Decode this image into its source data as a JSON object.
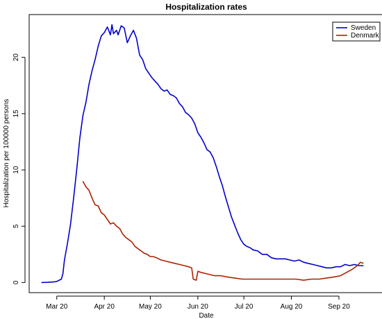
{
  "chart_data": {
    "type": "line",
    "title": "Hospitalization rates",
    "xlabel": "Date",
    "ylabel": "Hospitalization per 100000 persons",
    "x_range": [
      "2020-02-12",
      "2020-09-30"
    ],
    "ylim": [
      -0.9,
      23.8
    ],
    "x_ticks": [
      {
        "date": "2020-03-01",
        "label": "Mar 20"
      },
      {
        "date": "2020-04-01",
        "label": "Apr 20"
      },
      {
        "date": "2020-05-01",
        "label": "May 20"
      },
      {
        "date": "2020-06-01",
        "label": "Jun 20"
      },
      {
        "date": "2020-07-01",
        "label": "Jul 20"
      },
      {
        "date": "2020-08-01",
        "label": "Aug 20"
      },
      {
        "date": "2020-09-01",
        "label": "Sep 20"
      }
    ],
    "y_ticks": [
      0,
      5,
      10,
      15,
      20
    ],
    "grid": false,
    "legend_position": "top-right",
    "series": [
      {
        "name": "Sweden",
        "color": "#0000cc",
        "points": [
          [
            "2020-02-20",
            0.0
          ],
          [
            "2020-02-24",
            0.02
          ],
          [
            "2020-02-28",
            0.05
          ],
          [
            "2020-03-01",
            0.1
          ],
          [
            "2020-03-04",
            0.3
          ],
          [
            "2020-03-05",
            0.8
          ],
          [
            "2020-03-06",
            2.0
          ],
          [
            "2020-03-08",
            3.5
          ],
          [
            "2020-03-10",
            5.2
          ],
          [
            "2020-03-12",
            7.5
          ],
          [
            "2020-03-14",
            10.0
          ],
          [
            "2020-03-16",
            12.8
          ],
          [
            "2020-03-18",
            14.8
          ],
          [
            "2020-03-20",
            16.0
          ],
          [
            "2020-03-22",
            17.6
          ],
          [
            "2020-03-24",
            18.8
          ],
          [
            "2020-03-26",
            19.8
          ],
          [
            "2020-03-28",
            21.0
          ],
          [
            "2020-03-30",
            21.9
          ],
          [
            "2020-04-01",
            22.2
          ],
          [
            "2020-04-03",
            22.7
          ],
          [
            "2020-04-05",
            22.0
          ],
          [
            "2020-04-06",
            22.9
          ],
          [
            "2020-04-07",
            22.1
          ],
          [
            "2020-04-09",
            22.4
          ],
          [
            "2020-04-10",
            22.0
          ],
          [
            "2020-04-12",
            22.8
          ],
          [
            "2020-04-14",
            22.6
          ],
          [
            "2020-04-16",
            21.3
          ],
          [
            "2020-04-18",
            21.9
          ],
          [
            "2020-04-20",
            22.4
          ],
          [
            "2020-04-22",
            21.7
          ],
          [
            "2020-04-24",
            20.2
          ],
          [
            "2020-04-26",
            19.8
          ],
          [
            "2020-04-28",
            19.0
          ],
          [
            "2020-04-30",
            18.6
          ],
          [
            "2020-05-02",
            18.2
          ],
          [
            "2020-05-04",
            17.9
          ],
          [
            "2020-05-06",
            17.6
          ],
          [
            "2020-05-08",
            17.2
          ],
          [
            "2020-05-10",
            17.0
          ],
          [
            "2020-05-12",
            17.1
          ],
          [
            "2020-05-14",
            16.7
          ],
          [
            "2020-05-16",
            16.6
          ],
          [
            "2020-05-18",
            16.4
          ],
          [
            "2020-05-20",
            15.9
          ],
          [
            "2020-05-22",
            15.6
          ],
          [
            "2020-05-24",
            15.1
          ],
          [
            "2020-05-26",
            14.9
          ],
          [
            "2020-05-28",
            14.6
          ],
          [
            "2020-05-30",
            14.1
          ],
          [
            "2020-06-01",
            13.3
          ],
          [
            "2020-06-03",
            12.9
          ],
          [
            "2020-06-05",
            12.4
          ],
          [
            "2020-06-07",
            11.8
          ],
          [
            "2020-06-09",
            11.6
          ],
          [
            "2020-06-11",
            11.1
          ],
          [
            "2020-06-13",
            10.3
          ],
          [
            "2020-06-15",
            9.4
          ],
          [
            "2020-06-17",
            8.6
          ],
          [
            "2020-06-19",
            7.6
          ],
          [
            "2020-06-21",
            6.7
          ],
          [
            "2020-06-23",
            5.8
          ],
          [
            "2020-06-25",
            5.1
          ],
          [
            "2020-06-27",
            4.4
          ],
          [
            "2020-06-29",
            3.8
          ],
          [
            "2020-07-01",
            3.4
          ],
          [
            "2020-07-03",
            3.2
          ],
          [
            "2020-07-05",
            3.1
          ],
          [
            "2020-07-07",
            2.9
          ],
          [
            "2020-07-10",
            2.8
          ],
          [
            "2020-07-13",
            2.5
          ],
          [
            "2020-07-16",
            2.5
          ],
          [
            "2020-07-19",
            2.2
          ],
          [
            "2020-07-22",
            2.1
          ],
          [
            "2020-07-25",
            2.1
          ],
          [
            "2020-07-28",
            2.1
          ],
          [
            "2020-07-31",
            2.0
          ],
          [
            "2020-08-03",
            1.9
          ],
          [
            "2020-08-06",
            2.0
          ],
          [
            "2020-08-09",
            1.8
          ],
          [
            "2020-08-12",
            1.7
          ],
          [
            "2020-08-15",
            1.6
          ],
          [
            "2020-08-18",
            1.5
          ],
          [
            "2020-08-21",
            1.4
          ],
          [
            "2020-08-24",
            1.3
          ],
          [
            "2020-08-27",
            1.3
          ],
          [
            "2020-08-30",
            1.4
          ],
          [
            "2020-09-02",
            1.4
          ],
          [
            "2020-09-05",
            1.6
          ],
          [
            "2020-09-08",
            1.5
          ],
          [
            "2020-09-11",
            1.6
          ],
          [
            "2020-09-14",
            1.5
          ],
          [
            "2020-09-17",
            1.5
          ]
        ]
      },
      {
        "name": "Denmark",
        "color": "#aa2200",
        "points": [
          [
            "2020-03-18",
            9.0
          ],
          [
            "2020-03-20",
            8.5
          ],
          [
            "2020-03-22",
            8.2
          ],
          [
            "2020-03-24",
            7.5
          ],
          [
            "2020-03-26",
            6.9
          ],
          [
            "2020-03-28",
            6.8
          ],
          [
            "2020-03-30",
            6.2
          ],
          [
            "2020-04-01",
            6.0
          ],
          [
            "2020-04-03",
            5.6
          ],
          [
            "2020-04-05",
            5.2
          ],
          [
            "2020-04-07",
            5.3
          ],
          [
            "2020-04-09",
            5.0
          ],
          [
            "2020-04-11",
            4.8
          ],
          [
            "2020-04-13",
            4.3
          ],
          [
            "2020-04-15",
            4.0
          ],
          [
            "2020-04-17",
            3.8
          ],
          [
            "2020-04-19",
            3.6
          ],
          [
            "2020-04-21",
            3.2
          ],
          [
            "2020-04-23",
            3.0
          ],
          [
            "2020-04-25",
            2.8
          ],
          [
            "2020-04-27",
            2.6
          ],
          [
            "2020-04-29",
            2.5
          ],
          [
            "2020-05-01",
            2.3
          ],
          [
            "2020-05-03",
            2.3
          ],
          [
            "2020-05-05",
            2.2
          ],
          [
            "2020-05-08",
            2.0
          ],
          [
            "2020-05-11",
            1.9
          ],
          [
            "2020-05-14",
            1.8
          ],
          [
            "2020-05-17",
            1.7
          ],
          [
            "2020-05-20",
            1.6
          ],
          [
            "2020-05-23",
            1.5
          ],
          [
            "2020-05-26",
            1.4
          ],
          [
            "2020-05-28",
            1.3
          ],
          [
            "2020-05-29",
            0.3
          ],
          [
            "2020-05-31",
            0.2
          ],
          [
            "2020-06-01",
            1.0
          ],
          [
            "2020-06-03",
            0.9
          ],
          [
            "2020-06-06",
            0.8
          ],
          [
            "2020-06-09",
            0.7
          ],
          [
            "2020-06-12",
            0.6
          ],
          [
            "2020-06-16",
            0.6
          ],
          [
            "2020-06-20",
            0.5
          ],
          [
            "2020-06-25",
            0.4
          ],
          [
            "2020-06-30",
            0.3
          ],
          [
            "2020-07-05",
            0.3
          ],
          [
            "2020-07-10",
            0.3
          ],
          [
            "2020-07-15",
            0.3
          ],
          [
            "2020-07-20",
            0.3
          ],
          [
            "2020-07-25",
            0.3
          ],
          [
            "2020-07-30",
            0.3
          ],
          [
            "2020-08-04",
            0.3
          ],
          [
            "2020-08-09",
            0.2
          ],
          [
            "2020-08-14",
            0.3
          ],
          [
            "2020-08-19",
            0.3
          ],
          [
            "2020-08-24",
            0.4
          ],
          [
            "2020-08-29",
            0.5
          ],
          [
            "2020-09-02",
            0.6
          ],
          [
            "2020-09-06",
            0.9
          ],
          [
            "2020-09-10",
            1.2
          ],
          [
            "2020-09-13",
            1.5
          ],
          [
            "2020-09-15",
            1.8
          ],
          [
            "2020-09-17",
            1.7
          ]
        ]
      }
    ]
  }
}
